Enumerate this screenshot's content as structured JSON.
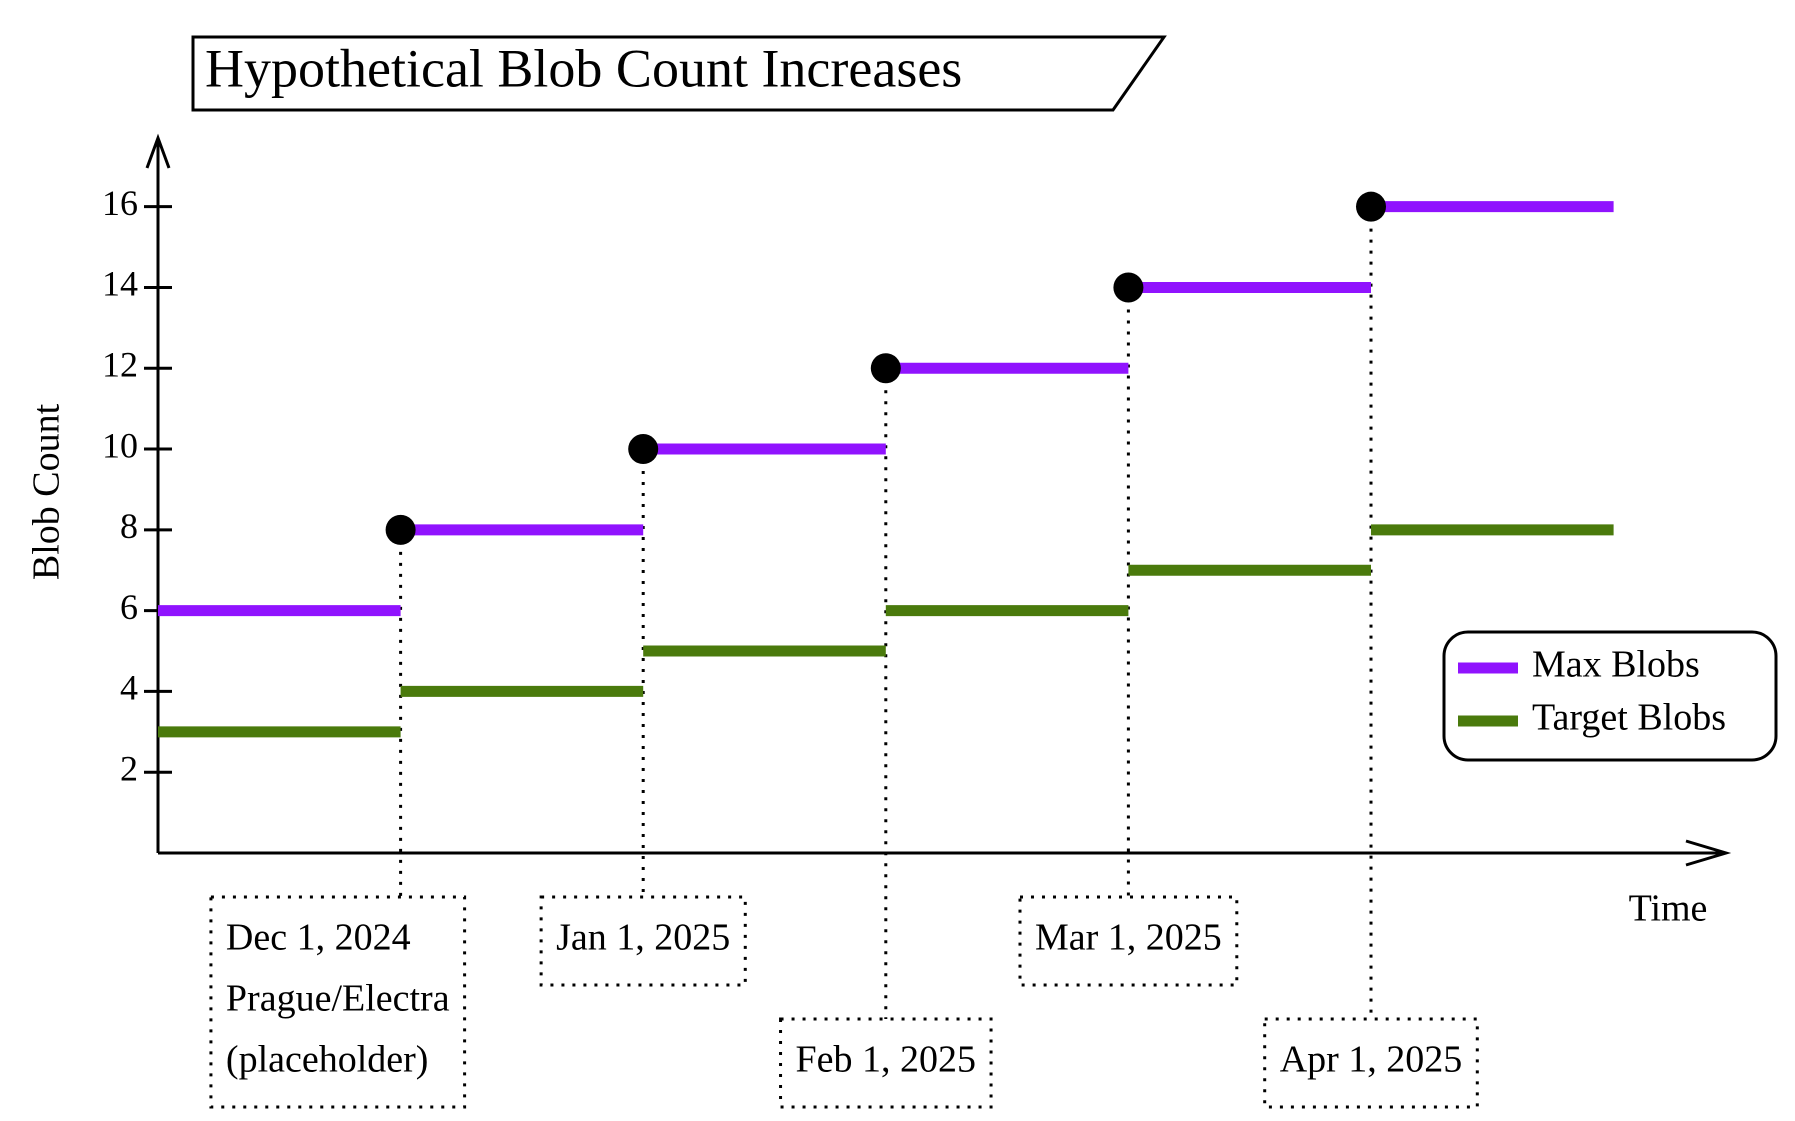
{
  "chart_data": {
    "type": "step",
    "title": "Hypothetical Blob Count Increases",
    "ylabel": "Blob Count",
    "xlabel": "Time",
    "events": [
      {
        "date": "Dec 1, 2024",
        "note": [
          "Prague/Electra",
          "(placeholder)"
        ]
      },
      {
        "date": "Jan 1, 2025"
      },
      {
        "date": "Feb 1, 2025"
      },
      {
        "date": "Mar 1, 2025"
      },
      {
        "date": "Apr 1, 2025"
      }
    ],
    "series": [
      {
        "name": "Max Blobs",
        "color": "#9013fe",
        "values": [
          6,
          8,
          10,
          12,
          14,
          16
        ]
      },
      {
        "name": "Target Blobs",
        "color": "#4a7a0c",
        "values": [
          3,
          4,
          5,
          6,
          7,
          8
        ]
      }
    ],
    "ylim": [
      0,
      17.7
    ],
    "yticks": [
      2,
      4,
      6,
      8,
      10,
      12,
      14,
      16
    ],
    "legend": "right"
  }
}
